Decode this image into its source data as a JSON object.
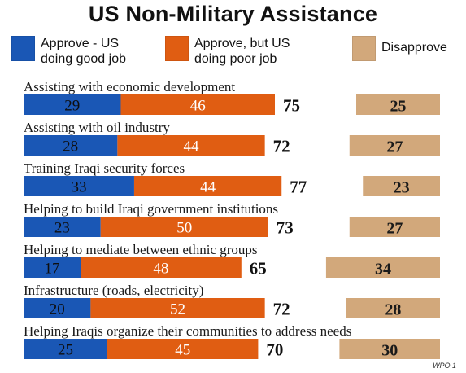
{
  "title": "US Non-Military Assistance",
  "legend": [
    {
      "label_line1": "Approve - US",
      "label_line2": "doing good job",
      "color": "#1a57b5"
    },
    {
      "label_line1": "Approve, but US",
      "label_line2": "doing poor job",
      "color": "#e05d12"
    },
    {
      "label_line1": "Disapprove",
      "label_line2": "",
      "color": "#d2a87b"
    }
  ],
  "watermark": "WPO 1",
  "chart_data": {
    "type": "bar",
    "title": "US Non-Military Assistance",
    "xlabel": "",
    "ylabel": "",
    "categories": [
      "Assisting with economic development",
      "Assisting with oil industry",
      "Training Iraqi security forces",
      "Helping to build Iraqi government institutions",
      "Helping to mediate between ethnic groups",
      "Infrastructure (roads, electricity)",
      "Helping Iraqis organize their communities to address needs"
    ],
    "series": [
      {
        "name": "Approve - US doing good job",
        "values": [
          29,
          28,
          33,
          23,
          17,
          20,
          25
        ],
        "color": "#1a57b5"
      },
      {
        "name": "Approve, but US doing poor job",
        "values": [
          46,
          44,
          44,
          50,
          48,
          52,
          45
        ],
        "color": "#e05d12"
      },
      {
        "name": "Disapprove",
        "values": [
          25,
          27,
          23,
          27,
          34,
          28,
          30
        ],
        "color": "#d2a87b"
      }
    ],
    "approve_totals": [
      75,
      72,
      77,
      73,
      65,
      72,
      70
    ],
    "stacked": true,
    "grid": false,
    "legend_position": "top",
    "xlim": [
      0,
      100
    ]
  }
}
